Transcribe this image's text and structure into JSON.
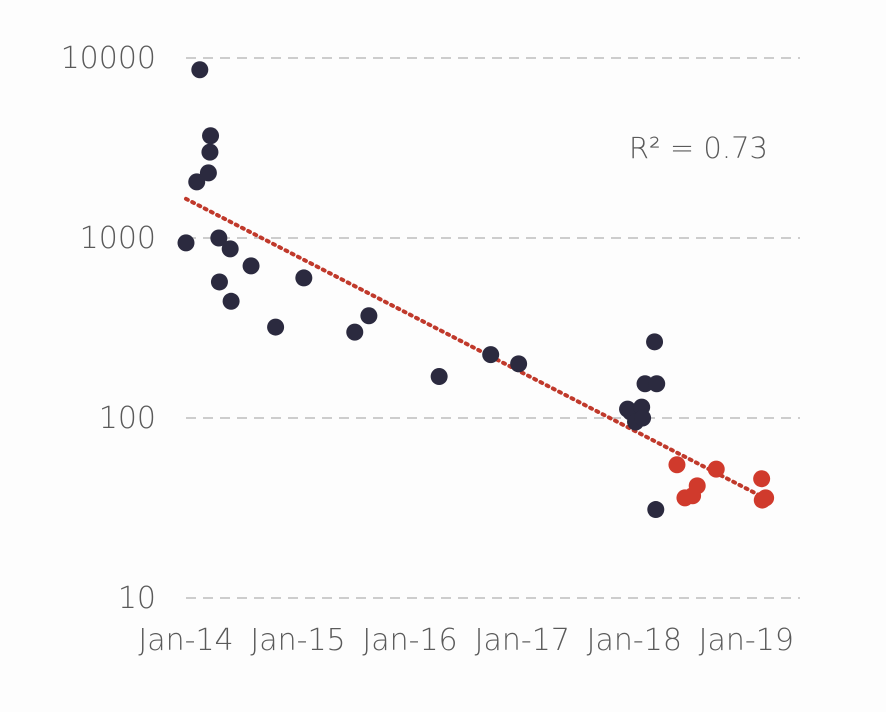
{
  "chart_data": {
    "type": "scatter",
    "title": "",
    "xlabel": "",
    "ylabel": "",
    "y_scale": "log",
    "ylim": [
      10,
      10000
    ],
    "xlim": [
      "2014-01-01",
      "2019-03-01"
    ],
    "y_ticks": [
      {
        "value": 10,
        "label": "10"
      },
      {
        "value": 100,
        "label": "100"
      },
      {
        "value": 1000,
        "label": "1000"
      },
      {
        "value": 10000,
        "label": "10000"
      }
    ],
    "x_ticks": [
      {
        "value": "2014-01-01",
        "label": "Jan-14"
      },
      {
        "value": "2015-01-01",
        "label": "Jan-15"
      },
      {
        "value": "2016-01-01",
        "label": "Jan-16"
      },
      {
        "value": "2017-01-01",
        "label": "Jan-17"
      },
      {
        "value": "2018-01-01",
        "label": "Jan-18"
      },
      {
        "value": "2019-01-01",
        "label": "Jan-19"
      }
    ],
    "grid": {
      "horizontal": true,
      "style": "dashed",
      "color": "#bdbdbd"
    },
    "legend": "none",
    "series": [
      {
        "color": "#2b2a3f",
        "points": [
          {
            "x": "2014-01-01",
            "y": 940
          },
          {
            "x": "2014-02-05",
            "y": 2050
          },
          {
            "x": "2014-02-15",
            "y": 8600
          },
          {
            "x": "2014-03-15",
            "y": 2300
          },
          {
            "x": "2014-03-20",
            "y": 3000
          },
          {
            "x": "2014-03-22",
            "y": 3700
          },
          {
            "x": "2014-04-18",
            "y": 1000
          },
          {
            "x": "2014-04-20",
            "y": 570
          },
          {
            "x": "2014-05-25",
            "y": 870
          },
          {
            "x": "2014-05-28",
            "y": 445
          },
          {
            "x": "2014-08-01",
            "y": 700
          },
          {
            "x": "2014-10-20",
            "y": 320
          },
          {
            "x": "2015-01-20",
            "y": 600
          },
          {
            "x": "2015-07-05",
            "y": 300
          },
          {
            "x": "2015-08-20",
            "y": 370
          },
          {
            "x": "2016-04-05",
            "y": 170
          },
          {
            "x": "2016-09-20",
            "y": 225
          },
          {
            "x": "2016-12-20",
            "y": 200
          },
          {
            "x": "2017-12-10",
            "y": 112
          },
          {
            "x": "2017-12-20",
            "y": 108
          },
          {
            "x": "2018-01-05",
            "y": 95
          },
          {
            "x": "2018-01-25",
            "y": 115
          },
          {
            "x": "2018-01-28",
            "y": 100
          },
          {
            "x": "2018-02-05",
            "y": 155
          },
          {
            "x": "2018-03-15",
            "y": 155
          },
          {
            "x": "2018-03-08",
            "y": 265
          },
          {
            "x": "2018-03-12",
            "y": 31
          }
        ]
      },
      {
        "color": "#d03a2c",
        "points": [
          {
            "x": "2018-05-20",
            "y": 55
          },
          {
            "x": "2018-06-15",
            "y": 36
          },
          {
            "x": "2018-07-10",
            "y": 37
          },
          {
            "x": "2018-07-25",
            "y": 42
          },
          {
            "x": "2018-09-25",
            "y": 52
          },
          {
            "x": "2019-02-20",
            "y": 46
          },
          {
            "x": "2019-02-22",
            "y": 35
          },
          {
            "x": "2019-03-05",
            "y": 36
          }
        ]
      }
    ],
    "trendline": {
      "type": "exponential",
      "style": "dotted",
      "color": "#c0392b",
      "start": {
        "x": "2014-01-01",
        "y": 1650
      },
      "end": {
        "x": "2019-03-01",
        "y": 36
      }
    },
    "annotations": [
      {
        "text": "R² = 0.73",
        "position": "top-right"
      }
    ]
  }
}
